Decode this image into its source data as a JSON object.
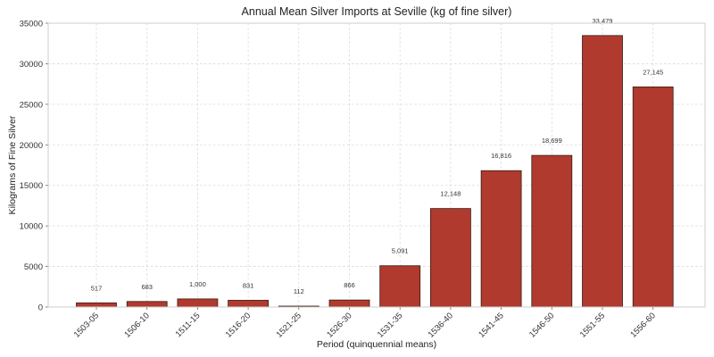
{
  "chart_data": {
    "type": "bar",
    "title": "Annual Mean Silver Imports at Seville (kg of fine silver)",
    "xlabel": "Period (quinquennial means)",
    "ylabel": "Kilograms of Fine Silver",
    "categories": [
      "1503-05",
      "1506-10",
      "1511-15",
      "1516-20",
      "1521-25",
      "1526-30",
      "1531-35",
      "1536-40",
      "1541-45",
      "1546-50",
      "1551-55",
      "1556-60"
    ],
    "values": [
      517,
      683,
      1000,
      831,
      112,
      866,
      5091,
      12148,
      16816,
      18699,
      33479,
      27145
    ],
    "value_labels": [
      "517",
      "683",
      "1,000",
      "831",
      "112",
      "866",
      "5,091",
      "12,148",
      "16,816",
      "18,699",
      "33,479",
      "27,145"
    ],
    "ylim": [
      0,
      35000
    ],
    "yticks": [
      0,
      5000,
      10000,
      15000,
      20000,
      25000,
      30000,
      35000
    ],
    "grid": true,
    "bar_color": "#b03a2e",
    "bar_edge_color": "#3a1a14"
  }
}
